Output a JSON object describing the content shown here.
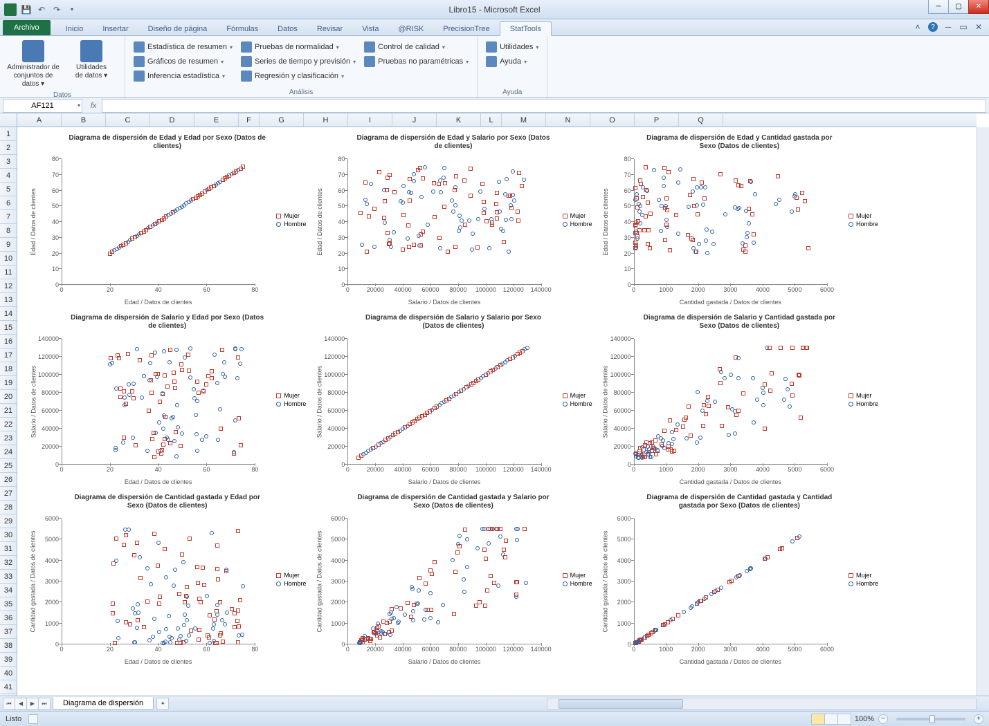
{
  "app_title": "Libro15 - Microsoft Excel",
  "qat": {
    "save": "💾",
    "undo": "↶",
    "redo": "↷"
  },
  "tabs": {
    "file": "Archivo",
    "items": [
      "Inicio",
      "Insertar",
      "Diseño de página",
      "Fórmulas",
      "Datos",
      "Revisar",
      "Vista",
      "@RISK",
      "PrecisionTree",
      "StatTools"
    ],
    "active_index": 9
  },
  "ribbon": {
    "group_datos": {
      "label": "Datos",
      "big": [
        {
          "label": "Administrador de\nconjuntos de datos"
        },
        {
          "label": "Utilidades\nde datos"
        }
      ]
    },
    "group_analisis": {
      "label": "Análisis",
      "col1": [
        "Estadística de resumen",
        "Gráficos de resumen",
        "Inferencia estadística"
      ],
      "col2": [
        "Pruebas de normalidad",
        "Series de tiempo y previsión",
        "Regresión y clasificación"
      ],
      "col3": [
        "Control de calidad",
        "Pruebas no paramétricas"
      ]
    },
    "group_ayuda": {
      "label": "Ayuda",
      "items": [
        "Utilidades",
        "Ayuda"
      ]
    }
  },
  "namebox": "AF121",
  "columns": [
    {
      "l": "A",
      "w": 64
    },
    {
      "l": "B",
      "w": 64
    },
    {
      "l": "C",
      "w": 64
    },
    {
      "l": "D",
      "w": 64
    },
    {
      "l": "E",
      "w": 64
    },
    {
      "l": "F",
      "w": 30
    },
    {
      "l": "G",
      "w": 64
    },
    {
      "l": "H",
      "w": 64
    },
    {
      "l": "I",
      "w": 64
    },
    {
      "l": "J",
      "w": 64
    },
    {
      "l": "K",
      "w": 64
    },
    {
      "l": "L",
      "w": 30
    },
    {
      "l": "M",
      "w": 64
    },
    {
      "l": "N",
      "w": 64
    },
    {
      "l": "O",
      "w": 64
    },
    {
      "l": "P",
      "w": 64
    },
    {
      "l": "Q",
      "w": 64
    }
  ],
  "legend": {
    "mujer": "Mujer",
    "hombre": "Hombre"
  },
  "colors": {
    "mujer": "#c0392b",
    "hombre": "#2e5fa4"
  },
  "charts": [
    {
      "title": "Diagrama de dispersión de Edad y Edad por Sexo (Datos de clientes)",
      "xlabel": "Edad / Datos de clientes",
      "ylabel": "Edad / Datos de clientes",
      "xlim": [
        0,
        80
      ],
      "xticks": [
        0,
        20,
        40,
        60,
        80
      ],
      "ylim": [
        0,
        80
      ],
      "yticks": [
        0,
        10,
        20,
        30,
        40,
        50,
        60,
        70,
        80
      ],
      "kind": "identity",
      "xrange": [
        20,
        75
      ],
      "n": 60
    },
    {
      "title": "Diagrama de dispersión de Edad y Salario por Sexo (Datos de clientes)",
      "xlabel": "Salario / Datos de clientes",
      "ylabel": "Edad / Datos de clientes",
      "xlim": [
        0,
        140000
      ],
      "xticks": [
        0,
        20000,
        40000,
        60000,
        80000,
        100000,
        120000,
        140000
      ],
      "ylim": [
        0,
        80
      ],
      "yticks": [
        0,
        10,
        20,
        30,
        40,
        50,
        60,
        70,
        80
      ],
      "kind": "scatter",
      "xrange": [
        8000,
        130000
      ],
      "yrange": [
        20,
        75
      ],
      "n": 120
    },
    {
      "title": "Diagrama de dispersión de Edad y Cantidad gastada por Sexo (Datos de clientes)",
      "xlabel": "Cantidad gastada / Datos de clientes",
      "ylabel": "Edad / Datos de clientes",
      "xlim": [
        0,
        6000
      ],
      "xticks": [
        0,
        1000,
        2000,
        3000,
        4000,
        5000,
        6000
      ],
      "ylim": [
        0,
        80
      ],
      "yticks": [
        0,
        10,
        20,
        30,
        40,
        50,
        60,
        70,
        80
      ],
      "kind": "scatter-skew",
      "xrange": [
        50,
        5500
      ],
      "yrange": [
        20,
        75
      ],
      "n": 120
    },
    {
      "title": "Diagrama de dispersión de Salario y Edad por Sexo (Datos de clientes)",
      "xlabel": "Edad / Datos de clientes",
      "ylabel": "Salario / Datos de clientes",
      "xlim": [
        0,
        80
      ],
      "xticks": [
        0,
        20,
        40,
        60,
        80
      ],
      "ylim": [
        0,
        140000
      ],
      "yticks": [
        0,
        20000,
        40000,
        60000,
        80000,
        100000,
        120000,
        140000
      ],
      "kind": "scatter",
      "xrange": [
        20,
        75
      ],
      "yrange": [
        8000,
        130000
      ],
      "n": 120
    },
    {
      "title": "Diagrama de dispersión de Salario y Salario por Sexo (Datos de clientes)",
      "xlabel": "Salario / Datos de clientes",
      "ylabel": "Salario / Datos de clientes",
      "xlim": [
        0,
        140000
      ],
      "xticks": [
        0,
        20000,
        40000,
        60000,
        80000,
        100000,
        120000,
        140000
      ],
      "ylim": [
        0,
        140000
      ],
      "yticks": [
        0,
        20000,
        40000,
        60000,
        80000,
        100000,
        120000,
        140000
      ],
      "kind": "identity",
      "xrange": [
        8000,
        130000
      ],
      "n": 70
    },
    {
      "title": "Diagrama de dispersión de Salario y Cantidad gastada por Sexo (Datos de clientes)",
      "xlabel": "Cantidad gastada / Datos de clientes",
      "ylabel": "Salario / Datos de clientes",
      "xlim": [
        0,
        6000
      ],
      "xticks": [
        0,
        1000,
        2000,
        3000,
        4000,
        5000,
        6000
      ],
      "ylim": [
        0,
        140000
      ],
      "yticks": [
        0,
        20000,
        40000,
        60000,
        80000,
        100000,
        120000,
        140000
      ],
      "kind": "corr",
      "xrange": [
        50,
        5500
      ],
      "yrange": [
        8000,
        130000
      ],
      "n": 120
    },
    {
      "title": "Diagrama de dispersión de Cantidad gastada y Edad por Sexo (Datos de clientes)",
      "xlabel": "Edad / Datos de clientes",
      "ylabel": "Cantidad gastada / Datos de clientes",
      "xlim": [
        0,
        80
      ],
      "xticks": [
        0,
        20,
        40,
        60,
        80
      ],
      "ylim": [
        0,
        6000
      ],
      "yticks": [
        0,
        1000,
        2000,
        3000,
        4000,
        5000,
        6000
      ],
      "kind": "scatter-skew-y",
      "xrange": [
        20,
        75
      ],
      "yrange": [
        50,
        5500
      ],
      "n": 120
    },
    {
      "title": "Diagrama de dispersión de Cantidad gastada y Salario por Sexo (Datos de clientes)",
      "xlabel": "Salario / Datos de clientes",
      "ylabel": "Cantidad gastada / Datos de clientes",
      "xlim": [
        0,
        140000
      ],
      "xticks": [
        0,
        20000,
        40000,
        60000,
        80000,
        100000,
        120000,
        140000
      ],
      "ylim": [
        0,
        6000
      ],
      "yticks": [
        0,
        1000,
        2000,
        3000,
        4000,
        5000,
        6000
      ],
      "kind": "corr",
      "xrange": [
        8000,
        130000
      ],
      "yrange": [
        50,
        5500
      ],
      "n": 120
    },
    {
      "title": "Diagrama de dispersión de Cantidad gastada y Cantidad gastada por Sexo (Datos de clientes)",
      "xlabel": "Cantidad gastada / Datos de clientes",
      "ylabel": "Cantidad gastada / Datos de clientes",
      "xlim": [
        0,
        6000
      ],
      "xticks": [
        0,
        1000,
        2000,
        3000,
        4000,
        5000,
        6000
      ],
      "ylim": [
        0,
        6000
      ],
      "yticks": [
        0,
        1000,
        2000,
        3000,
        4000,
        5000,
        6000
      ],
      "kind": "identity-skew",
      "xrange": [
        50,
        5500
      ],
      "n": 70
    }
  ],
  "sheet_tab": "Diagrama de dispersión",
  "status": "Listo",
  "zoom": "100%"
}
